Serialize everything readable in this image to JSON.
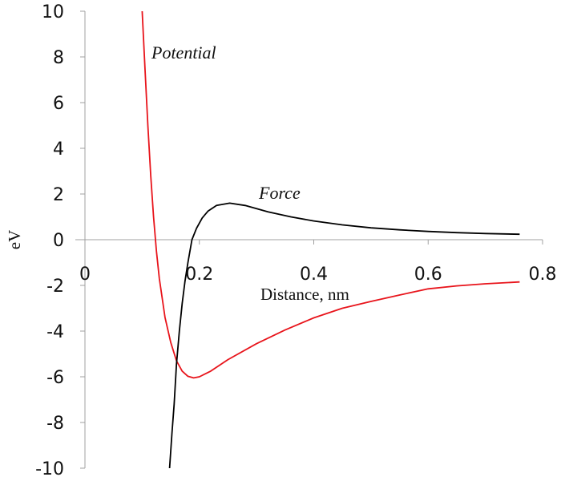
{
  "chart_data": {
    "type": "line",
    "title": "",
    "xlabel": "Distance, nm",
    "ylabel": "eV",
    "xlim": [
      0,
      0.8
    ],
    "ylim": [
      -10,
      10
    ],
    "xticks": [
      0,
      0.2,
      0.4,
      0.6,
      0.8
    ],
    "xtick_labels": [
      "0",
      "0.2",
      "0.4",
      "0.6",
      "0.8"
    ],
    "yticks": [
      10,
      8,
      6,
      4,
      2,
      0,
      -2,
      -4,
      -6,
      -8,
      -10
    ],
    "ytick_labels": [
      "10",
      "8",
      "6",
      "4",
      "2",
      "0",
      "-2",
      "-4",
      "-6",
      "-8",
      "-10"
    ],
    "grid": false,
    "legend": "none",
    "annotations": [
      "Potential",
      "Force"
    ],
    "series": [
      {
        "name": "Potential",
        "color": "#e8141b",
        "x": [
          0.1,
          0.105,
          0.11,
          0.115,
          0.12,
          0.125,
          0.13,
          0.14,
          0.15,
          0.16,
          0.17,
          0.18,
          0.19,
          0.2,
          0.22,
          0.25,
          0.3,
          0.35,
          0.4,
          0.45,
          0.5,
          0.55,
          0.6,
          0.65,
          0.7,
          0.76
        ],
        "y": [
          10,
          7.5,
          5.0,
          2.8,
          1.0,
          -0.5,
          -1.7,
          -3.4,
          -4.5,
          -5.3,
          -5.75,
          -5.98,
          -6.05,
          -6.0,
          -5.75,
          -5.25,
          -4.55,
          -3.95,
          -3.42,
          -3.0,
          -2.7,
          -2.42,
          -2.15,
          -2.02,
          -1.93,
          -1.85
        ]
      },
      {
        "name": "Force",
        "color": "#000000",
        "x": [
          0.148,
          0.152,
          0.156,
          0.16,
          0.165,
          0.17,
          0.175,
          0.18,
          0.187,
          0.195,
          0.205,
          0.215,
          0.23,
          0.253,
          0.28,
          0.32,
          0.36,
          0.4,
          0.45,
          0.5,
          0.55,
          0.6,
          0.65,
          0.7,
          0.76
        ],
        "y": [
          -10,
          -8.5,
          -7.2,
          -5.45,
          -4.0,
          -2.8,
          -1.8,
          -1.0,
          0,
          0.5,
          0.95,
          1.25,
          1.5,
          1.6,
          1.5,
          1.22,
          1.0,
          0.82,
          0.65,
          0.52,
          0.43,
          0.36,
          0.31,
          0.27,
          0.24
        ]
      }
    ]
  }
}
